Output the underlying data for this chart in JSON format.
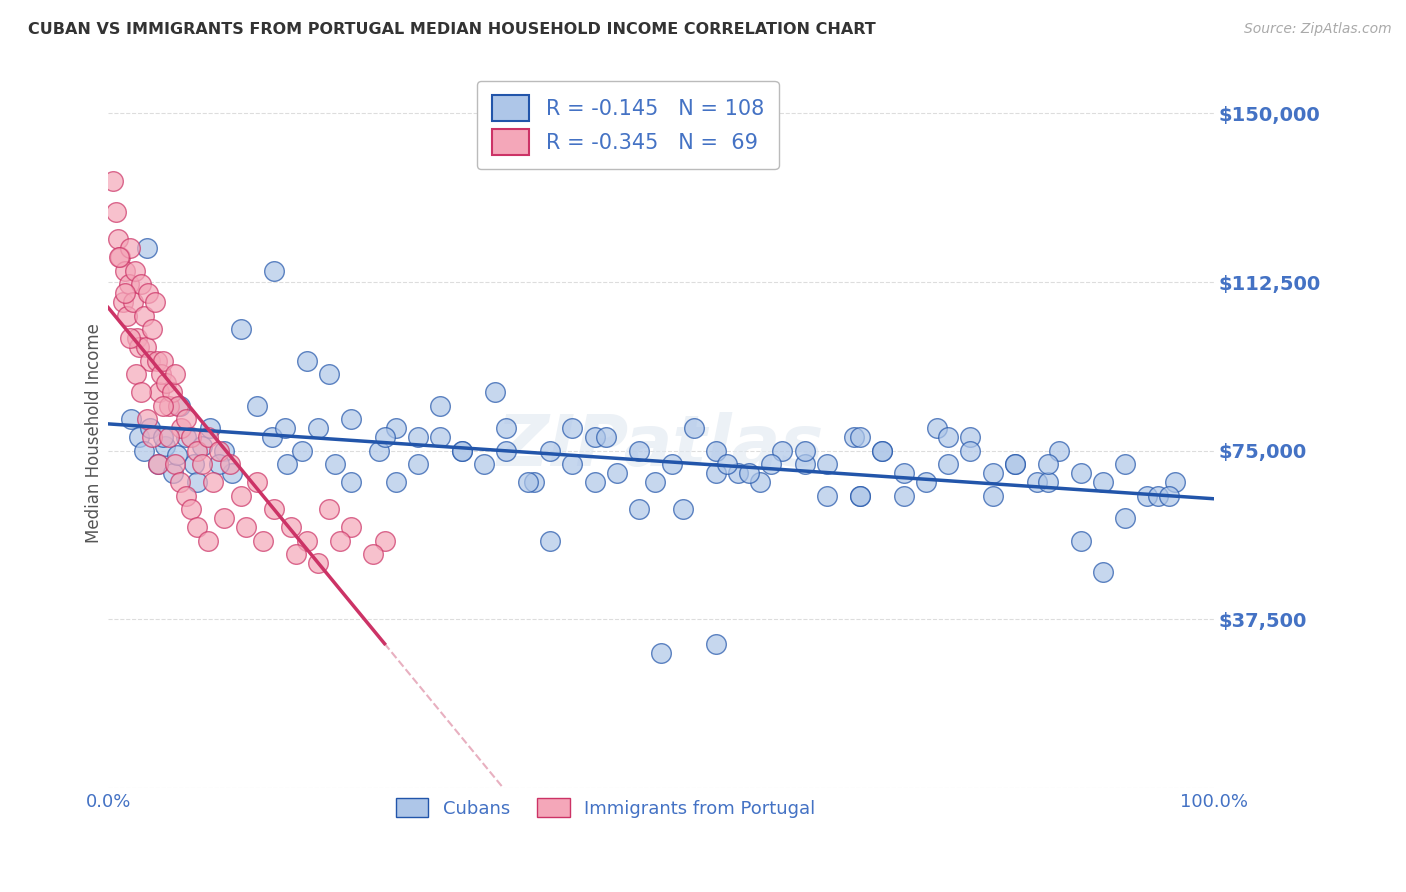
{
  "title": "CUBAN VS IMMIGRANTS FROM PORTUGAL MEDIAN HOUSEHOLD INCOME CORRELATION CHART",
  "source": "Source: ZipAtlas.com",
  "ylabel": "Median Household Income",
  "yticks": [
    0,
    37500,
    75000,
    112500,
    150000
  ],
  "ytick_labels": [
    "",
    "$37,500",
    "$75,000",
    "$112,500",
    "$150,000"
  ],
  "xlim": [
    0.0,
    100.0
  ],
  "ylim": [
    15000,
    158000
  ],
  "cubans_R": "-0.145",
  "cubans_N": "108",
  "portugal_R": "-0.345",
  "portugal_N": "69",
  "cubans_color": "#aec6e8",
  "portugal_color": "#f4a7b9",
  "cubans_line_color": "#2255aa",
  "portugal_line_color": "#cc3366",
  "regression_dashed_color": "#e8b0c0",
  "legend_label_cubans": "Cubans",
  "legend_label_portugal": "Immigrants from Portugal",
  "axis_color": "#4472c4",
  "watermark": "ZIPatlas",
  "cubans_x": [
    2.1,
    2.8,
    3.2,
    3.8,
    4.5,
    5.1,
    5.9,
    6.2,
    7.0,
    7.8,
    8.5,
    9.2,
    10.5,
    11.2,
    13.5,
    14.8,
    16.2,
    17.5,
    19.0,
    20.5,
    22.0,
    24.5,
    26.0,
    28.0,
    30.0,
    32.0,
    34.0,
    36.0,
    38.5,
    40.0,
    42.0,
    44.0,
    46.0,
    48.0,
    49.5,
    51.0,
    53.0,
    55.0,
    57.0,
    59.0,
    61.0,
    63.0,
    65.0,
    67.5,
    70.0,
    72.0,
    74.0,
    76.0,
    78.0,
    80.0,
    82.0,
    84.0,
    86.0,
    88.0,
    90.0,
    92.0,
    94.0,
    96.5,
    18.0,
    22.0,
    35.0,
    45.0,
    55.0,
    63.0,
    3.5,
    6.5,
    12.0,
    25.0,
    40.0,
    52.0,
    68.0,
    80.0,
    90.0,
    15.0,
    30.0,
    60.0,
    75.0,
    85.0,
    95.0,
    50.0,
    70.0,
    8.0,
    48.0,
    58.0,
    72.0,
    82.0,
    28.0,
    38.0,
    65.0,
    78.0,
    42.0,
    55.0,
    68.0,
    85.0,
    92.0,
    5.0,
    20.0,
    32.0,
    44.0,
    56.0,
    68.0,
    76.0,
    88.0,
    96.0,
    10.0,
    16.0,
    26.0,
    36.0
  ],
  "cubans_y": [
    82000,
    78000,
    75000,
    80000,
    72000,
    76000,
    70000,
    74000,
    78000,
    72000,
    76000,
    80000,
    75000,
    70000,
    85000,
    78000,
    72000,
    75000,
    80000,
    72000,
    68000,
    75000,
    80000,
    72000,
    78000,
    75000,
    72000,
    80000,
    68000,
    75000,
    72000,
    78000,
    70000,
    75000,
    68000,
    72000,
    80000,
    75000,
    70000,
    68000,
    75000,
    72000,
    65000,
    78000,
    75000,
    70000,
    68000,
    72000,
    78000,
    65000,
    72000,
    68000,
    75000,
    70000,
    48000,
    72000,
    65000,
    68000,
    95000,
    82000,
    88000,
    78000,
    32000,
    75000,
    120000,
    85000,
    102000,
    78000,
    55000,
    62000,
    78000,
    70000,
    68000,
    115000,
    85000,
    72000,
    80000,
    68000,
    65000,
    30000,
    75000,
    68000,
    62000,
    70000,
    65000,
    72000,
    78000,
    68000,
    72000,
    75000,
    80000,
    70000,
    65000,
    72000,
    60000,
    78000,
    92000,
    75000,
    68000,
    72000,
    65000,
    78000,
    55000,
    65000,
    72000,
    80000,
    68000,
    75000
  ],
  "portugal_x": [
    0.4,
    0.7,
    0.9,
    1.1,
    1.3,
    1.5,
    1.7,
    1.9,
    2.0,
    2.2,
    2.4,
    2.6,
    2.8,
    3.0,
    3.2,
    3.4,
    3.6,
    3.8,
    4.0,
    4.2,
    4.4,
    4.6,
    4.8,
    5.0,
    5.2,
    5.5,
    5.8,
    6.0,
    6.3,
    6.6,
    7.0,
    7.5,
    8.0,
    8.5,
    9.0,
    9.5,
    10.0,
    11.0,
    12.0,
    13.5,
    15.0,
    16.5,
    18.0,
    20.0,
    22.0,
    25.0,
    1.0,
    1.5,
    2.0,
    2.5,
    3.0,
    3.5,
    4.0,
    4.5,
    5.0,
    5.5,
    6.0,
    6.5,
    7.0,
    7.5,
    8.0,
    9.0,
    10.5,
    12.5,
    14.0,
    17.0,
    19.0,
    21.0,
    24.0
  ],
  "portugal_y": [
    135000,
    128000,
    122000,
    118000,
    108000,
    115000,
    105000,
    112000,
    120000,
    108000,
    115000,
    100000,
    98000,
    112000,
    105000,
    98000,
    110000,
    95000,
    102000,
    108000,
    95000,
    88000,
    92000,
    95000,
    90000,
    85000,
    88000,
    92000,
    85000,
    80000,
    82000,
    78000,
    75000,
    72000,
    78000,
    68000,
    75000,
    72000,
    65000,
    68000,
    62000,
    58000,
    55000,
    62000,
    58000,
    55000,
    118000,
    110000,
    100000,
    92000,
    88000,
    82000,
    78000,
    72000,
    85000,
    78000,
    72000,
    68000,
    65000,
    62000,
    58000,
    55000,
    60000,
    58000,
    55000,
    52000,
    50000,
    55000,
    52000
  ]
}
